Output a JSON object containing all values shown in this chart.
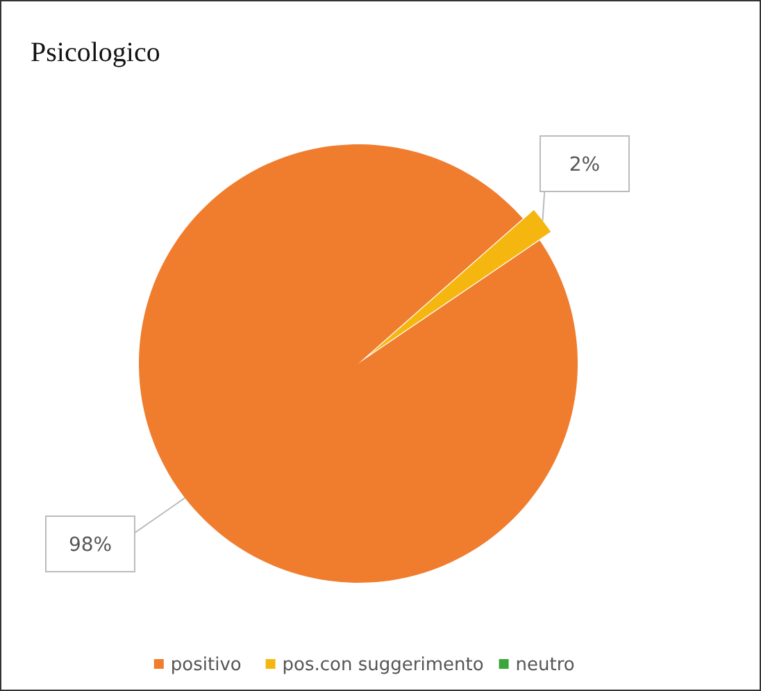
{
  "chart_data": {
    "type": "pie",
    "title": "Psicologico",
    "categories": [
      "positivo",
      "pos.con suggerimento",
      "neutro"
    ],
    "values": [
      98,
      2,
      0
    ],
    "colors": [
      "#f07d2e",
      "#f5b70f",
      "#3aa53a"
    ],
    "value_labels": [
      "98%",
      "2%",
      null
    ],
    "legend": "bottom"
  }
}
